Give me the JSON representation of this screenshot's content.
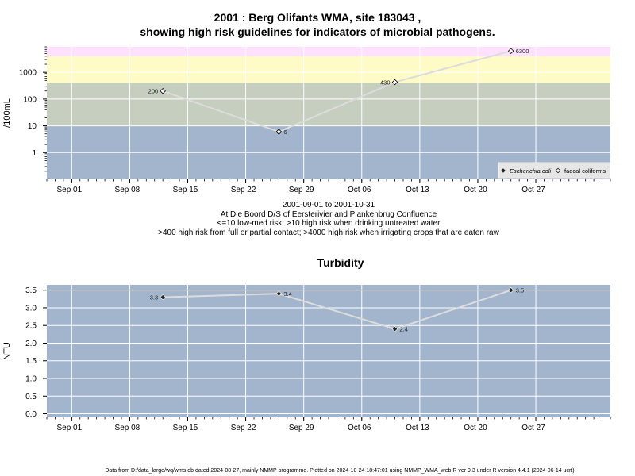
{
  "title_line1": "2001 : Berg Olifants WMA, site 183043 ,",
  "title_line2": "showing high risk guidelines for indicators of microbial pathogens.",
  "caption": [
    "2001-09-01 to 2001-10-31",
    "At Die Boord D/S of Eersterivier and Plankenbrug Confluence",
    "<=10 low-med risk; >10 high risk when drinking untreated water",
    ">400 high risk from full or partial contact; >4000 high risk when irrigating crops that are eaten raw"
  ],
  "footer": "Data from D:/data_large/wq/wms.db dated 2024-08-27, mainly NMMP programme. Plotted on 2024-10-24 18:47:01 using NMMP_WMA_web.R ver 9.3 under R version 4.4.1 (2024-06-14 ucrt)",
  "colors": {
    "band_low": "#a2b5cd",
    "band_high": "#c6cebf",
    "band_contact": "#fefbc6",
    "band_irrigation": "#fde1fd",
    "turbidity_bg": "#a2b5cd",
    "line": "#dcdcdc"
  },
  "chart_data": [
    {
      "type": "line",
      "ylabel": "/100mL",
      "xlabel": "",
      "yscale": "log",
      "ylim": [
        0.1,
        9000
      ],
      "xlim": [
        "2001-08-29",
        "2001-11-05"
      ],
      "x_ticks": [
        "Sep 01",
        "Sep 08",
        "Sep 15",
        "Sep 22",
        "Sep 29",
        "Oct 06",
        "Oct 13",
        "Oct 20",
        "Oct 27"
      ],
      "y_ticks": [
        "1",
        "10",
        "100",
        "1000"
      ],
      "grid": true,
      "risk_bands": [
        {
          "from": 0.1,
          "to": 10
        },
        {
          "from": 10,
          "to": 400
        },
        {
          "from": 400,
          "to": 4000
        },
        {
          "from": 4000,
          "to": 9000
        }
      ],
      "legend": {
        "position": "bottom-right",
        "entries": [
          {
            "label": "Escherichia coli",
            "marker": "filled-diamond"
          },
          {
            "label": "faecal coliforms",
            "marker": "open-diamond"
          }
        ]
      },
      "series": [
        {
          "name": "faecal coliforms",
          "marker": "open-diamond",
          "x": [
            "2001-09-12",
            "2001-09-26",
            "2001-10-10",
            "2001-10-24"
          ],
          "values": [
            200,
            6,
            430,
            6300
          ],
          "labels": [
            "200",
            "6",
            "430",
            "6300"
          ]
        }
      ]
    },
    {
      "type": "line",
      "title": "Turbidity",
      "ylabel": "NTU",
      "xlabel": "",
      "ylim": [
        -0.1,
        3.65
      ],
      "xlim": [
        "2001-08-29",
        "2001-11-05"
      ],
      "x_ticks": [
        "Sep 01",
        "Sep 08",
        "Sep 15",
        "Sep 22",
        "Sep 29",
        "Oct 06",
        "Oct 13",
        "Oct 20",
        "Oct 27"
      ],
      "y_ticks": [
        "0.0",
        "0.5",
        "1.0",
        "1.5",
        "2.0",
        "2.5",
        "3.0",
        "3.5"
      ],
      "grid": true,
      "series": [
        {
          "marker": "filled-diamond",
          "x": [
            "2001-09-12",
            "2001-09-26",
            "2001-10-10",
            "2001-10-24"
          ],
          "values": [
            3.3,
            3.4,
            2.4,
            3.5
          ],
          "labels": [
            "3.3",
            "3.4",
            "2.4",
            "3.5"
          ]
        }
      ]
    }
  ]
}
